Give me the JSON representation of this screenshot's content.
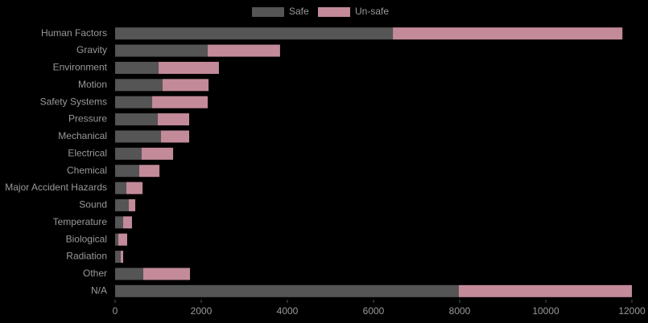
{
  "chart_data": {
    "type": "stacked-hbar",
    "categories": [
      "Human Factors",
      "Gravity",
      "Environment",
      "Motion",
      "Safety Systems",
      "Pressure",
      "Mechanical",
      "Electrical",
      "Chemical",
      "Major Accident Hazards",
      "Sound",
      "Temperature",
      "Biological",
      "Radiation",
      "Other",
      "N/A"
    ],
    "series": [
      {
        "name": "Safe",
        "color": "#555555",
        "values": [
          6450,
          2150,
          1010,
          1100,
          860,
          990,
          1065,
          617,
          560,
          262,
          318,
          187,
          75,
          130,
          654,
          7980
        ]
      },
      {
        "name": "Un-safe",
        "color": "#c38a9a",
        "values": [
          5330,
          1680,
          1400,
          1070,
          1290,
          730,
          655,
          730,
          470,
          375,
          150,
          205,
          205,
          57,
          1085,
          4020
        ]
      }
    ],
    "xlim": [
      0,
      12000
    ],
    "xticks": [
      0,
      2000,
      4000,
      6000,
      8000,
      10000,
      12000
    ],
    "legend": "top"
  }
}
